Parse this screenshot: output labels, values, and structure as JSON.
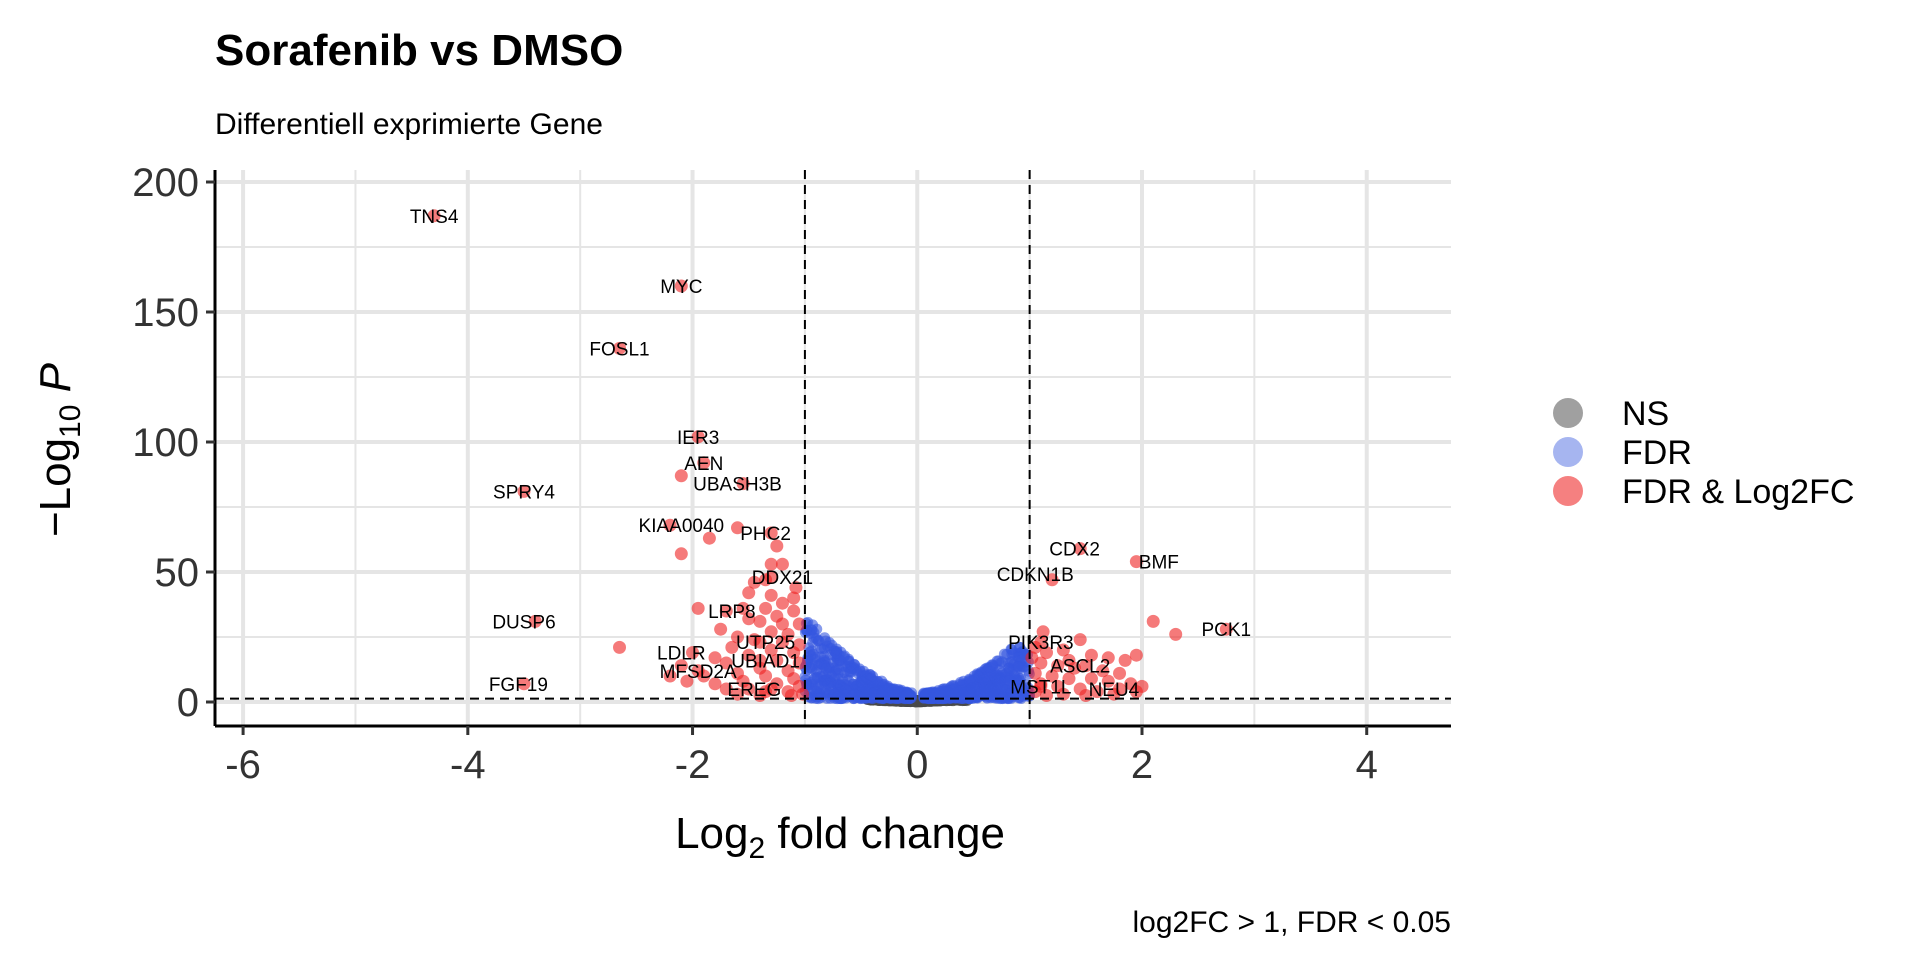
{
  "chart_data": {
    "type": "scatter",
    "title": "Sorafenib vs DMSO",
    "subtitle": "Differentiell exprimierte Gene",
    "xlabel": {
      "base": "Log",
      "sub": "2",
      "rest": " fold change"
    },
    "ylabel": {
      "pre": "−Log",
      "sub": "10",
      "italic": "P"
    },
    "caption": "log2FC > 1, FDR < 0.05",
    "xlim": [
      -6.25,
      4.75
    ],
    "ylim": [
      -9,
      200
    ],
    "x_ticks": [
      -6,
      -4,
      -2,
      0,
      2,
      4
    ],
    "x_tick_labels": [
      "-6",
      "-4",
      "-2",
      "0",
      "2",
      "4"
    ],
    "y_ticks": [
      0,
      50,
      100,
      150,
      200
    ],
    "y_tick_labels": [
      "0",
      "50",
      "100",
      "150",
      "200"
    ],
    "grid": true,
    "cutoff_lines": {
      "x": [
        -1,
        1
      ],
      "y": 1.3
    },
    "legend": {
      "position": "right",
      "items": [
        {
          "label": "NS",
          "color": "#808080"
        },
        {
          "label": "FDR",
          "color": "#6a84e6"
        },
        {
          "label": "FDR & Log2FC",
          "color": "#ee2c2c"
        }
      ]
    },
    "colors": {
      "ns": "#4a4a4a",
      "fdr": "#3557e0",
      "both": "#ee2222"
    },
    "labeled_points": [
      {
        "gene": "TNS4",
        "x": -4.3,
        "y": 187,
        "label_dx": 0,
        "label_dy": 0
      },
      {
        "gene": "MYC",
        "x": -2.1,
        "y": 160,
        "label_dx": 0,
        "label_dy": 0
      },
      {
        "gene": "FOSL1",
        "x": -2.65,
        "y": 136,
        "label_dx": 0,
        "label_dy": 0
      },
      {
        "gene": "IER3",
        "x": -1.95,
        "y": 102,
        "label_dx": 0,
        "label_dy": 0
      },
      {
        "gene": "AEN",
        "x": -1.9,
        "y": 92,
        "label_dx": 0,
        "label_dy": 0
      },
      {
        "gene": "UBASH3B",
        "x": -1.55,
        "y": 84,
        "label_dx": -0.05,
        "label_dy": 0
      },
      {
        "gene": "SPRY4",
        "x": -3.5,
        "y": 81,
        "label_dx": 0,
        "label_dy": 0
      },
      {
        "gene": "KIAA0040",
        "x": -2.2,
        "y": 68,
        "label_dx": 0.1,
        "label_dy": 0
      },
      {
        "gene": "PHC2",
        "x": -1.3,
        "y": 65,
        "label_dx": -0.05,
        "label_dy": 0
      },
      {
        "gene": "CDX2",
        "x": 1.45,
        "y": 59,
        "label_dx": -0.05,
        "label_dy": 0
      },
      {
        "gene": "BMF",
        "x": 1.95,
        "y": 54,
        "label_dx": 0.2,
        "label_dy": 0
      },
      {
        "gene": "DDX21",
        "x": -1.3,
        "y": 48,
        "label_dx": 0.1,
        "label_dy": 0
      },
      {
        "gene": "CDKN1B",
        "x": 1.2,
        "y": 47,
        "label_dx": -0.15,
        "label_dy": -6
      },
      {
        "gene": "LRP8",
        "x": -1.7,
        "y": 35,
        "label_dx": 0.05,
        "label_dy": 0
      },
      {
        "gene": "DUSP6",
        "x": -3.4,
        "y": 31,
        "label_dx": -0.1,
        "label_dy": 0
      },
      {
        "gene": "PCK1",
        "x": 2.75,
        "y": 28,
        "label_dx": 0,
        "label_dy": 0
      },
      {
        "gene": "UTP25",
        "x": -1.4,
        "y": 23,
        "label_dx": 0.05,
        "label_dy": 0
      },
      {
        "gene": "PIK3R3",
        "x": 1.1,
        "y": 23,
        "label_dx": 0,
        "label_dy": 0
      },
      {
        "gene": "LDLR",
        "x": -2.0,
        "y": 19,
        "label_dx": -0.1,
        "label_dy": 0
      },
      {
        "gene": "UBIAD1",
        "x": -1.4,
        "y": 16,
        "label_dx": 0.05,
        "label_dy": 0
      },
      {
        "gene": "ASCL2",
        "x": 1.5,
        "y": 14,
        "label_dx": -0.05,
        "label_dy": 0
      },
      {
        "gene": "MFSD2A",
        "x": -1.95,
        "y": 12,
        "label_dx": 0,
        "label_dy": 0
      },
      {
        "gene": "MST1L",
        "x": 1.1,
        "y": 6,
        "label_dx": 0,
        "label_dy": 0
      },
      {
        "gene": "NEU4",
        "x": 1.8,
        "y": 5,
        "label_dx": -0.05,
        "label_dy": 0
      },
      {
        "gene": "FGF19",
        "x": -3.5,
        "y": 7,
        "label_dx": -0.05,
        "label_dy": 0
      },
      {
        "gene": "EREG",
        "x": -1.3,
        "y": 5,
        "label_dx": -0.15,
        "label_dy": 0
      }
    ],
    "sig_points": [
      {
        "x": -2.1,
        "y": 87
      },
      {
        "x": -2.1,
        "y": 57
      },
      {
        "x": -1.85,
        "y": 63
      },
      {
        "x": -1.6,
        "y": 67
      },
      {
        "x": -1.25,
        "y": 60
      },
      {
        "x": -1.2,
        "y": 53
      },
      {
        "x": -1.3,
        "y": 53
      },
      {
        "x": -1.45,
        "y": 46
      },
      {
        "x": -1.5,
        "y": 42
      },
      {
        "x": -1.3,
        "y": 41
      },
      {
        "x": -1.1,
        "y": 40
      },
      {
        "x": -1.2,
        "y": 38
      },
      {
        "x": -1.95,
        "y": 36
      },
      {
        "x": -1.55,
        "y": 36
      },
      {
        "x": -1.35,
        "y": 36
      },
      {
        "x": -1.1,
        "y": 35
      },
      {
        "x": -1.25,
        "y": 33
      },
      {
        "x": -1.5,
        "y": 32
      },
      {
        "x": -1.4,
        "y": 31
      },
      {
        "x": -1.2,
        "y": 30
      },
      {
        "x": -1.05,
        "y": 30
      },
      {
        "x": -1.75,
        "y": 28
      },
      {
        "x": -1.3,
        "y": 27
      },
      {
        "x": -1.15,
        "y": 26
      },
      {
        "x": -1.6,
        "y": 25
      },
      {
        "x": -1.45,
        "y": 24
      },
      {
        "x": -1.2,
        "y": 23
      },
      {
        "x": -1.05,
        "y": 22
      },
      {
        "x": -1.65,
        "y": 21
      },
      {
        "x": -2.65,
        "y": 21
      },
      {
        "x": -1.3,
        "y": 20
      },
      {
        "x": -1.1,
        "y": 19
      },
      {
        "x": -1.5,
        "y": 18
      },
      {
        "x": -1.8,
        "y": 17
      },
      {
        "x": -1.25,
        "y": 16
      },
      {
        "x": -1.05,
        "y": 15
      },
      {
        "x": -1.7,
        "y": 15
      },
      {
        "x": -2.1,
        "y": 14
      },
      {
        "x": -1.4,
        "y": 13
      },
      {
        "x": -1.15,
        "y": 12
      },
      {
        "x": -1.6,
        "y": 11
      },
      {
        "x": -2.2,
        "y": 10
      },
      {
        "x": -1.9,
        "y": 10
      },
      {
        "x": -1.35,
        "y": 10
      },
      {
        "x": -1.1,
        "y": 9
      },
      {
        "x": -1.55,
        "y": 8
      },
      {
        "x": -2.05,
        "y": 8
      },
      {
        "x": -1.8,
        "y": 7
      },
      {
        "x": -1.25,
        "y": 7
      },
      {
        "x": -1.05,
        "y": 6
      },
      {
        "x": -1.5,
        "y": 5
      },
      {
        "x": -1.7,
        "y": 5
      },
      {
        "x": -1.15,
        "y": 4
      },
      {
        "x": -1.35,
        "y": 4
      },
      {
        "x": -1.02,
        "y": 3
      },
      {
        "x": -1.6,
        "y": 3
      },
      {
        "x": -1.12,
        "y": 2.5
      },
      {
        "x": -1.4,
        "y": 2.5
      },
      {
        "x": -1.08,
        "y": 44
      },
      {
        "x": -1.35,
        "y": 47
      },
      {
        "x": 1.05,
        "y": 21
      },
      {
        "x": 1.15,
        "y": 19
      },
      {
        "x": 1.3,
        "y": 20
      },
      {
        "x": 1.45,
        "y": 24
      },
      {
        "x": 1.55,
        "y": 18
      },
      {
        "x": 1.7,
        "y": 17
      },
      {
        "x": 1.85,
        "y": 16
      },
      {
        "x": 1.95,
        "y": 18
      },
      {
        "x": 2.1,
        "y": 31
      },
      {
        "x": 2.3,
        "y": 26
      },
      {
        "x": 1.1,
        "y": 15
      },
      {
        "x": 1.25,
        "y": 14
      },
      {
        "x": 1.4,
        "y": 13
      },
      {
        "x": 1.65,
        "y": 12
      },
      {
        "x": 1.8,
        "y": 11
      },
      {
        "x": 1.05,
        "y": 11
      },
      {
        "x": 1.2,
        "y": 10
      },
      {
        "x": 1.35,
        "y": 9
      },
      {
        "x": 1.55,
        "y": 9
      },
      {
        "x": 1.7,
        "y": 8
      },
      {
        "x": 1.9,
        "y": 7
      },
      {
        "x": 2.0,
        "y": 6
      },
      {
        "x": 1.1,
        "y": 7
      },
      {
        "x": 1.25,
        "y": 6
      },
      {
        "x": 1.45,
        "y": 5
      },
      {
        "x": 1.6,
        "y": 4
      },
      {
        "x": 1.05,
        "y": 4
      },
      {
        "x": 1.3,
        "y": 3
      },
      {
        "x": 1.15,
        "y": 2.5
      },
      {
        "x": 1.5,
        "y": 2.5
      },
      {
        "x": 1.75,
        "y": 3
      },
      {
        "x": 1.95,
        "y": 4
      },
      {
        "x": 1.02,
        "y": 17
      },
      {
        "x": 1.12,
        "y": 27
      },
      {
        "x": 1.35,
        "y": 16
      }
    ]
  }
}
